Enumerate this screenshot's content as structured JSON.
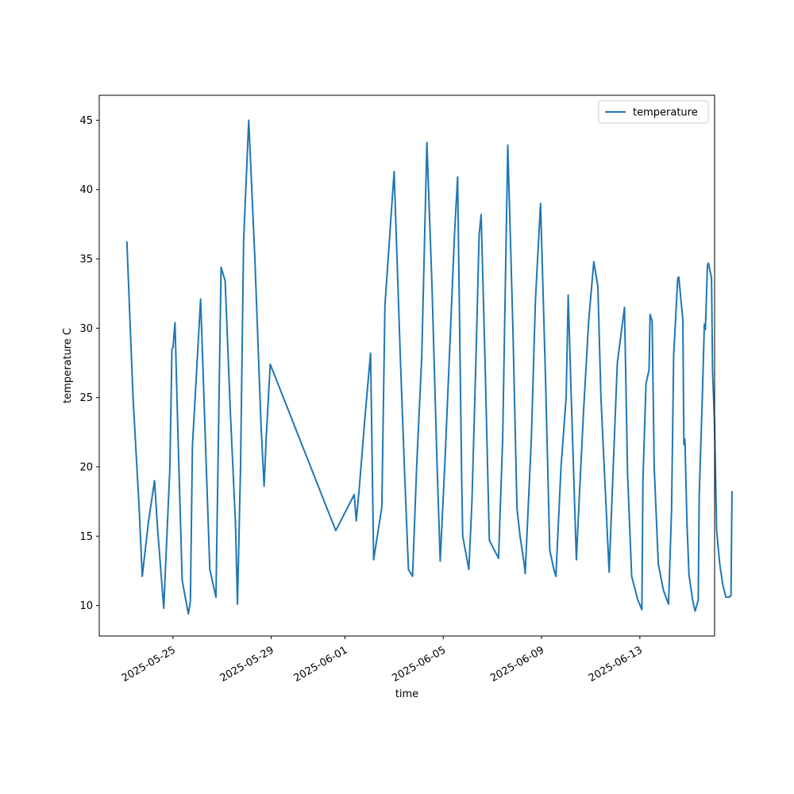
{
  "chart_data": {
    "type": "line",
    "title": "",
    "xlabel": "time",
    "ylabel": "temperature C",
    "x_tick_labels": [
      "2025-05-25",
      "2025-05-29",
      "2025-06-01",
      "2025-06-05",
      "2025-06-09",
      "2025-06-13"
    ],
    "y_ticks": [
      10,
      15,
      20,
      25,
      30,
      35,
      40,
      45
    ],
    "xlim": [
      "2025-05-22T00:00",
      "2025-06-16T01:00"
    ],
    "ylim": [
      7.8,
      46.8
    ],
    "grid": false,
    "legend_position": "top-right",
    "series": [
      {
        "name": "temperature",
        "color": "#1f77b4",
        "points": [
          [
            "2025-05-23T03:00",
            36.2
          ],
          [
            "2025-05-23T09:00",
            25.0
          ],
          [
            "2025-05-23T15:00",
            17.0
          ],
          [
            "2025-05-23T18:00",
            12.1
          ],
          [
            "2025-05-24T00:00",
            16.0
          ],
          [
            "2025-05-24T06:00",
            19.0
          ],
          [
            "2025-05-24T09:00",
            15.5
          ],
          [
            "2025-05-24T15:00",
            9.8
          ],
          [
            "2025-05-24T21:00",
            20.0
          ],
          [
            "2025-05-24T23:00",
            28.5
          ],
          [
            "2025-05-25T00:00",
            28.6
          ],
          [
            "2025-05-25T02:00",
            30.4
          ],
          [
            "2025-05-25T05:00",
            22.0
          ],
          [
            "2025-05-25T09:00",
            11.8
          ],
          [
            "2025-05-25T15:00",
            9.4
          ],
          [
            "2025-05-25T17:00",
            10.3
          ],
          [
            "2025-05-25T19:00",
            21.5
          ],
          [
            "2025-05-26T03:00",
            32.1
          ],
          [
            "2025-05-26T09:00",
            19.0
          ],
          [
            "2025-05-26T12:00",
            12.6
          ],
          [
            "2025-05-26T18:00",
            10.6
          ],
          [
            "2025-05-26T21:00",
            25.0
          ],
          [
            "2025-05-26T23:00",
            34.4
          ],
          [
            "2025-05-27T03:00",
            33.4
          ],
          [
            "2025-05-27T08:00",
            24.0
          ],
          [
            "2025-05-27T13:00",
            16.0
          ],
          [
            "2025-05-27T15:00",
            10.1
          ],
          [
            "2025-05-27T18:00",
            20.0
          ],
          [
            "2025-05-27T21:00",
            36.3
          ],
          [
            "2025-05-28T02:00",
            45.0
          ],
          [
            "2025-05-28T08:00",
            35.0
          ],
          [
            "2025-05-28T14:00",
            23.0
          ],
          [
            "2025-05-28T17:00",
            18.6
          ],
          [
            "2025-05-28T19:00",
            22.0
          ],
          [
            "2025-05-28T23:00",
            27.4
          ],
          [
            "2025-05-31T15:00",
            15.4
          ],
          [
            "2025-06-01T09:00",
            18.0
          ],
          [
            "2025-06-01T11:00",
            16.1
          ],
          [
            "2025-06-01T14:00",
            18.5
          ],
          [
            "2025-06-01T20:00",
            24.0
          ],
          [
            "2025-06-02T01:00",
            28.2
          ],
          [
            "2025-06-02T04:00",
            13.3
          ],
          [
            "2025-06-02T12:00",
            17.1
          ],
          [
            "2025-06-02T15:00",
            31.6
          ],
          [
            "2025-06-02T20:00",
            37.0
          ],
          [
            "2025-06-03T00:00",
            41.3
          ],
          [
            "2025-06-03T06:00",
            28.0
          ],
          [
            "2025-06-03T10:00",
            20.0
          ],
          [
            "2025-06-03T14:00",
            12.6
          ],
          [
            "2025-06-03T18:00",
            12.1
          ],
          [
            "2025-06-03T22:00",
            20.0
          ],
          [
            "2025-06-04T03:00",
            28.0
          ],
          [
            "2025-06-04T08:00",
            43.4
          ],
          [
            "2025-06-04T13:00",
            33.0
          ],
          [
            "2025-06-04T18:00",
            20.0
          ],
          [
            "2025-06-04T21:00",
            13.2
          ],
          [
            "2025-06-05T02:00",
            21.0
          ],
          [
            "2025-06-05T06:00",
            28.0
          ],
          [
            "2025-06-05T11:00",
            36.8
          ],
          [
            "2025-06-05T14:00",
            40.9
          ],
          [
            "2025-06-05T18:00",
            19.0
          ],
          [
            "2025-06-05T19:00",
            15.0
          ],
          [
            "2025-06-06T01:00",
            12.6
          ],
          [
            "2025-06-06T04:00",
            17.5
          ],
          [
            "2025-06-06T08:00",
            28.0
          ],
          [
            "2025-06-06T11:00",
            36.7
          ],
          [
            "2025-06-06T13:00",
            38.2
          ],
          [
            "2025-06-06T17:00",
            27.0
          ],
          [
            "2025-06-06T21:00",
            14.7
          ],
          [
            "2025-06-07T06:00",
            13.4
          ],
          [
            "2025-06-07T10:00",
            22.0
          ],
          [
            "2025-06-07T15:00",
            43.2
          ],
          [
            "2025-06-07T20:00",
            30.0
          ],
          [
            "2025-06-08T00:00",
            17.0
          ],
          [
            "2025-06-08T03:00",
            15.0
          ],
          [
            "2025-06-08T07:00",
            13.0
          ],
          [
            "2025-06-08T08:00",
            12.3
          ],
          [
            "2025-06-08T14:00",
            22.0
          ],
          [
            "2025-06-08T18:00",
            32.0
          ],
          [
            "2025-06-08T23:00",
            39.0
          ],
          [
            "2025-06-09T04:00",
            26.0
          ],
          [
            "2025-06-09T08:00",
            14.0
          ],
          [
            "2025-06-09T12:00",
            12.6
          ],
          [
            "2025-06-09T14:00",
            12.1
          ],
          [
            "2025-06-09T19:00",
            20.0
          ],
          [
            "2025-06-10T00:00",
            25.0
          ],
          [
            "2025-06-10T02:00",
            32.4
          ],
          [
            "2025-06-10T05:00",
            25.0
          ],
          [
            "2025-06-10T10:00",
            13.3
          ],
          [
            "2025-06-10T13:00",
            18.0
          ],
          [
            "2025-06-10T17:00",
            24.0
          ],
          [
            "2025-06-10T22:00",
            30.5
          ],
          [
            "2025-06-11T03:00",
            34.8
          ],
          [
            "2025-06-11T07:00",
            33.0
          ],
          [
            "2025-06-11T10:00",
            25.0
          ],
          [
            "2025-06-11T18:00",
            12.4
          ],
          [
            "2025-06-11T22:00",
            20.0
          ],
          [
            "2025-06-12T02:00",
            27.5
          ],
          [
            "2025-06-12T09:00",
            31.5
          ],
          [
            "2025-06-12T12:00",
            19.5
          ],
          [
            "2025-06-12T16:00",
            12.1
          ],
          [
            "2025-06-12T22:00",
            10.4
          ],
          [
            "2025-06-13T02:00",
            9.7
          ],
          [
            "2025-06-13T03:00",
            19.0
          ],
          [
            "2025-06-13T06:00",
            26.0
          ],
          [
            "2025-06-13T09:00",
            27.0
          ],
          [
            "2025-06-13T10:00",
            31.0
          ],
          [
            "2025-06-13T12:00",
            30.5
          ],
          [
            "2025-06-13T14:00",
            20.0
          ],
          [
            "2025-06-13T18:00",
            13.0
          ],
          [
            "2025-06-13T23:00",
            11.1
          ],
          [
            "2025-06-14T03:00",
            10.3
          ],
          [
            "2025-06-14T04:00",
            10.1
          ],
          [
            "2025-06-14T07:00",
            17.0
          ],
          [
            "2025-06-14T09:00",
            28.0
          ],
          [
            "2025-06-14T13:00",
            33.6
          ],
          [
            "2025-06-14T14:00",
            33.7
          ],
          [
            "2025-06-14T18:00",
            30.6
          ],
          [
            "2025-06-14T19:00",
            21.6
          ],
          [
            "2025-06-14T20:00",
            22.0
          ],
          [
            "2025-06-14T22:00",
            16.0
          ],
          [
            "2025-06-15T00:00",
            12.2
          ],
          [
            "2025-06-15T04:00",
            10.2
          ],
          [
            "2025-06-15T06:00",
            9.6
          ],
          [
            "2025-06-15T09:00",
            10.4
          ],
          [
            "2025-06-15T10:00",
            18.0
          ],
          [
            "2025-06-15T13:00",
            25.0
          ],
          [
            "2025-06-15T15:00",
            30.3
          ],
          [
            "2025-06-15T16:00",
            29.9
          ],
          [
            "2025-06-15T18:00",
            34.5
          ],
          [
            "2025-06-15T19:00",
            34.7
          ],
          [
            "2025-06-15T22:00",
            33.6
          ],
          [
            "2025-06-15T23:00",
            27.0
          ],
          [
            "2025-06-16T01:00",
            23.0
          ],
          [
            "2025-06-16T03:00",
            15.4
          ],
          [
            "2025-06-16T06:00",
            13.0
          ],
          [
            "2025-06-16T09:00",
            11.5
          ],
          [
            "2025-06-16T12:00",
            10.6
          ],
          [
            "2025-06-16T15:00",
            10.6
          ],
          [
            "2025-06-16T17:00",
            10.7
          ],
          [
            "2025-06-16T18:00",
            18.2
          ]
        ]
      }
    ]
  }
}
